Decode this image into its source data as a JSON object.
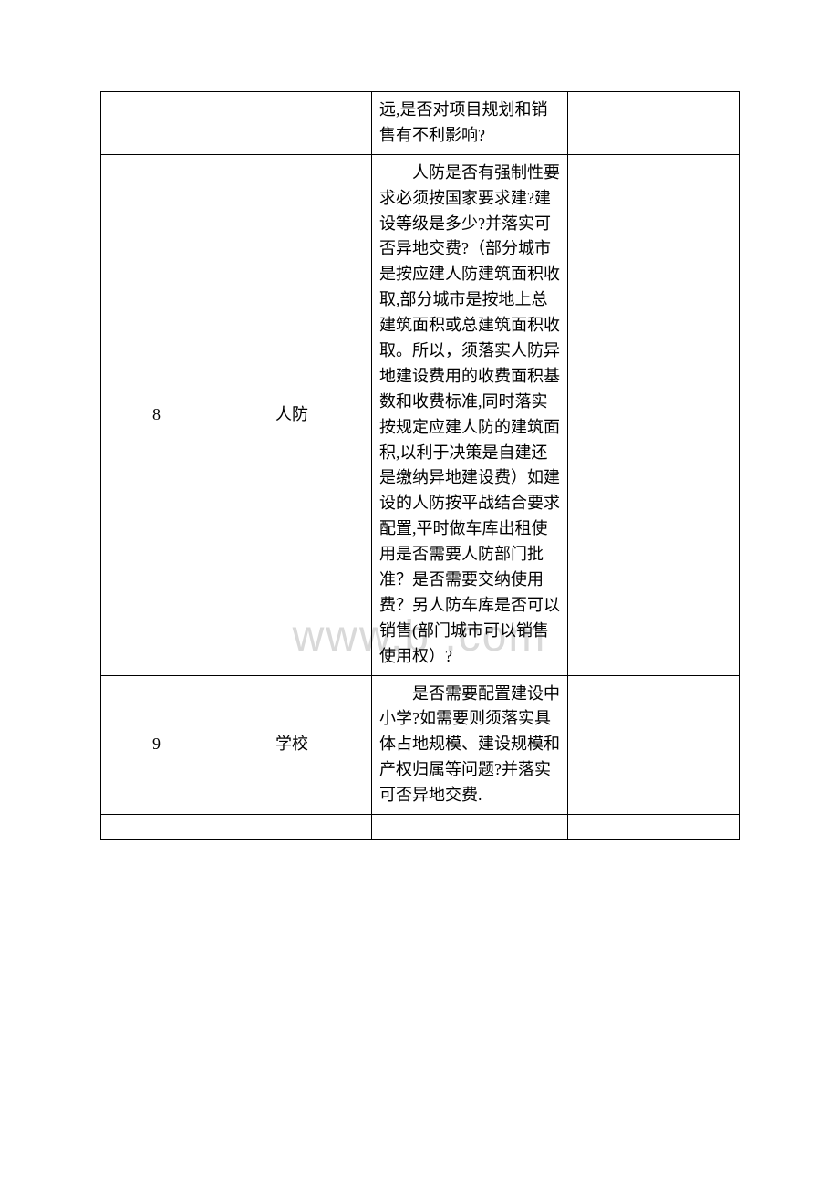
{
  "watermark": "www.b    .com",
  "table": {
    "rows": [
      {
        "num": "",
        "category": "",
        "content_indent": "",
        "content": "远,是否对项目规划和销售有不利影响?",
        "remark": ""
      },
      {
        "num": "8",
        "category": "人防",
        "content_indent": "　　人防是否有",
        "content": "强制性要求必须按国家要求建?建设等级是多少?并落实可否异地交费?（部分城市是按应建人防建筑面积收取,部分城市是按地上总建筑面积或总建筑面积收取。所以，须落实人防异地建设费用的收费面积基数和收费标准,同时落实按规定应建人防的建筑面积,以利于决策是自建还是缴纳异地建设费）如建设的人防按平战结合要求配置,平时做车库出租使用是否需要人防部门批准？是否需要交纳使用费？另人防车库是否可以销售(部门城市可以销售使用权）?",
        "remark": ""
      },
      {
        "num": "9",
        "category": "学校",
        "content_indent": "　　是否需要配",
        "content": "置建设中小学?如需要则须落实具体占地规模、建设规模和产权归属等问题?并落实可否异地交费.",
        "remark": ""
      },
      {
        "num": "",
        "category": "",
        "content_indent": "",
        "content": "",
        "remark": ""
      }
    ]
  }
}
